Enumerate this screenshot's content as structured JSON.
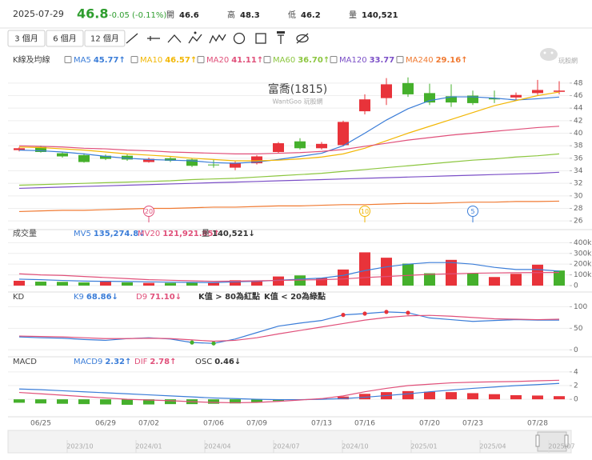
{
  "header": {
    "date": "2025-07-29",
    "price": "46.8",
    "change": "-0.05 (-0.11%)",
    "stats": [
      {
        "label": "開",
        "value": "46.6"
      },
      {
        "label": "高",
        "value": "48.3"
      },
      {
        "label": "低",
        "value": "46.2"
      },
      {
        "label": "量",
        "value": "140,521"
      }
    ],
    "ranges": [
      "3 個月",
      "6 個月",
      "12 個月"
    ],
    "logo": "玩股網"
  },
  "chart_data": [
    {
      "type": "candlestick",
      "title": "K線及均線",
      "watermark": "富喬(1815)",
      "watermark_sub": "WantGoo 玩股網",
      "categories": [
        null,
        "06/25",
        null,
        null,
        "06/29",
        null,
        "07/02",
        null,
        null,
        "07/06",
        null,
        "07/09",
        null,
        null,
        "07/13",
        null,
        "07/16",
        null,
        null,
        "07/20",
        null,
        "07/23",
        null,
        null,
        "07/28",
        null
      ],
      "open": [
        37.3,
        37.8,
        36.8,
        36.5,
        36.4,
        36.4,
        35.4,
        36.0,
        35.8,
        35.0,
        34.5,
        35.2,
        37.0,
        38.7,
        37.6,
        38.1,
        43.5,
        45.6,
        48.0,
        46.4,
        45.9,
        46.0,
        45.6,
        45.7,
        46.4,
        46.6
      ],
      "close": [
        37.6,
        37.0,
        36.3,
        35.4,
        35.9,
        35.8,
        35.9,
        35.6,
        34.8,
        34.9,
        35.3,
        36.3,
        38.4,
        37.6,
        38.3,
        41.8,
        45.4,
        47.8,
        46.2,
        44.9,
        44.9,
        44.8,
        45.4,
        46.1,
        46.9,
        46.8
      ],
      "high": [
        37.8,
        38.0,
        37.0,
        36.8,
        36.6,
        36.6,
        36.1,
        36.2,
        36.0,
        35.8,
        35.5,
        36.5,
        38.6,
        39.2,
        38.6,
        42.0,
        46.2,
        48.8,
        48.9,
        47.9,
        47.8,
        46.8,
        46.8,
        46.5,
        48.5,
        48.3
      ],
      "low": [
        37.1,
        36.9,
        36.1,
        35.3,
        35.7,
        35.6,
        35.3,
        35.4,
        34.6,
        34.5,
        34.1,
        35.0,
        36.8,
        37.4,
        37.4,
        37.9,
        43.0,
        44.5,
        45.8,
        44.5,
        44.2,
        44.5,
        44.8,
        45.3,
        46.1,
        46.2
      ],
      "up_color": "#e8333a",
      "down_color": "#45b02c",
      "series": [
        {
          "name": "MA5",
          "legend_label": "45.77↑",
          "color": "#3b7dd8",
          "values": [
            37.3,
            37.2,
            37.0,
            36.7,
            36.3,
            36.0,
            35.8,
            35.7,
            35.6,
            35.3,
            35.2,
            35.4,
            35.8,
            36.3,
            36.8,
            38.0,
            40.0,
            42.1,
            43.9,
            45.2,
            45.8,
            45.8,
            45.6,
            45.3,
            45.5,
            45.77
          ]
        },
        {
          "name": "MA10",
          "legend_label": "46.57↑",
          "color": "#f2b705",
          "values": [
            37.8,
            37.7,
            37.5,
            37.3,
            37.0,
            36.7,
            36.5,
            36.3,
            36.0,
            35.8,
            35.6,
            35.6,
            35.7,
            35.9,
            36.2,
            36.7,
            37.6,
            38.8,
            40.0,
            41.1,
            42.2,
            43.3,
            44.4,
            45.2,
            46.0,
            46.57
          ]
        },
        {
          "name": "MA20",
          "legend_label": "41.11↑",
          "color": "#e0507a",
          "values": [
            38.0,
            37.9,
            37.8,
            37.6,
            37.5,
            37.3,
            37.2,
            37.0,
            36.9,
            36.8,
            36.7,
            36.7,
            36.8,
            36.9,
            37.1,
            37.4,
            37.9,
            38.4,
            38.9,
            39.3,
            39.7,
            40.0,
            40.3,
            40.6,
            40.9,
            41.11
          ]
        },
        {
          "name": "MA60",
          "legend_label": "36.70↑",
          "color": "#8cc63f",
          "values": [
            31.7,
            31.8,
            31.9,
            32.0,
            32.1,
            32.2,
            32.3,
            32.4,
            32.6,
            32.7,
            32.8,
            33.0,
            33.2,
            33.4,
            33.6,
            33.9,
            34.2,
            34.5,
            34.8,
            35.1,
            35.4,
            35.7,
            35.9,
            36.2,
            36.4,
            36.7
          ]
        },
        {
          "name": "MA120",
          "legend_label": "33.77↑",
          "color": "#7b4fc7",
          "values": [
            31.2,
            31.3,
            31.4,
            31.5,
            31.6,
            31.7,
            31.8,
            31.9,
            32.0,
            32.1,
            32.2,
            32.3,
            32.4,
            32.5,
            32.6,
            32.7,
            32.8,
            32.9,
            33.0,
            33.1,
            33.2,
            33.3,
            33.4,
            33.5,
            33.6,
            33.77
          ]
        },
        {
          "name": "MA240",
          "legend_label": "29.16↑",
          "color": "#f07a32",
          "values": [
            27.5,
            27.6,
            27.7,
            27.7,
            27.8,
            27.9,
            28.0,
            28.0,
            28.1,
            28.2,
            28.2,
            28.3,
            28.4,
            28.4,
            28.5,
            28.6,
            28.6,
            28.7,
            28.8,
            28.8,
            28.9,
            29.0,
            29.0,
            29.1,
            29.1,
            29.16
          ]
        }
      ],
      "markers": [
        {
          "label": "20",
          "index": 6,
          "color": "#e0507a"
        },
        {
          "label": "10",
          "index": 16,
          "color": "#f2b705"
        },
        {
          "label": "5",
          "index": 21,
          "color": "#3b7dd8"
        }
      ],
      "ylim": [
        25,
        49
      ],
      "yticks": [
        26,
        28,
        30,
        32,
        34,
        36,
        38,
        40,
        42,
        44,
        46,
        48
      ],
      "grid": true
    },
    {
      "type": "bar",
      "title": "成交量",
      "up_color": "#e8333a",
      "down_color": "#45b02c",
      "series": [
        {
          "name": "MV5",
          "legend_label": "135,274.8↓",
          "color": "#3b7dd8",
          "type": "line",
          "values": [
            60000,
            55000,
            48000,
            42000,
            40000,
            38000,
            35000,
            32000,
            30000,
            28000,
            35000,
            40000,
            50000,
            60000,
            70000,
            95000,
            140000,
            175000,
            200000,
            215000,
            215000,
            200000,
            170000,
            150000,
            150000,
            135274.8
          ]
        },
        {
          "name": "MV20",
          "legend_label": "121,921.85↑",
          "color": "#e0507a",
          "type": "line",
          "values": [
            110000,
            100000,
            95000,
            85000,
            75000,
            65000,
            55000,
            50000,
            45000,
            40000,
            42000,
            45000,
            48000,
            52000,
            55000,
            62000,
            75000,
            85000,
            95000,
            105000,
            110000,
            115000,
            118000,
            120000,
            121000,
            121921.85
          ]
        },
        {
          "name": "量",
          "legend_label": "140,521↓",
          "color": "#333333",
          "type": "bar",
          "values": [
            45000,
            37000,
            35000,
            30000,
            45000,
            30000,
            25000,
            25000,
            30000,
            28000,
            50000,
            40000,
            85000,
            95000,
            70000,
            150000,
            310000,
            260000,
            205000,
            115000,
            240000,
            115000,
            80000,
            110000,
            195000,
            140521
          ]
        }
      ],
      "ylim": [
        0,
        440000
      ],
      "yticks": [
        0,
        {
          "value": 100000,
          "label": "100k"
        },
        {
          "value": 200000,
          "label": "200k"
        },
        {
          "value": 300000,
          "label": "300k"
        },
        {
          "value": 400000,
          "label": "400k"
        }
      ],
      "grid": true
    },
    {
      "type": "line",
      "title": "KD",
      "notes": [
        "K值 > 80為紅點",
        "K值 < 20為綠點"
      ],
      "series": [
        {
          "name": "K9",
          "legend_label": "68.86↓",
          "color": "#3b7dd8",
          "values": [
            30,
            28,
            27,
            24,
            22,
            26,
            28,
            25,
            17,
            15,
            25,
            40,
            55,
            62,
            68,
            81,
            84,
            88,
            86,
            74,
            70,
            66,
            68,
            70,
            69,
            68.86
          ],
          "dots": [
            {
              "above": 80,
              "color": "#e8333a"
            },
            {
              "below": 20,
              "color": "#45b02c"
            }
          ]
        },
        {
          "name": "D9",
          "legend_label": "71.10↓",
          "color": "#e0507a",
          "values": [
            32,
            31,
            30,
            28,
            26,
            26,
            27,
            26,
            23,
            20,
            22,
            28,
            37,
            45,
            53,
            61,
            69,
            75,
            79,
            80,
            78,
            75,
            72,
            71,
            70,
            71.1
          ]
        }
      ],
      "ylim": [
        -5,
        110
      ],
      "yticks": [
        0,
        50,
        100
      ],
      "grid": true
    },
    {
      "type": "line",
      "title": "MACD",
      "up_color": "#e8333a",
      "down_color": "#45b02c",
      "series": [
        {
          "name": "MACD9",
          "legend_label": "2.32↑",
          "color": "#3b7dd8",
          "values": [
            1.5,
            1.4,
            1.25,
            1.1,
            0.95,
            0.8,
            0.65,
            0.5,
            0.35,
            0.2,
            0.1,
            0.0,
            -0.05,
            -0.05,
            0.0,
            0.1,
            0.3,
            0.55,
            0.8,
            1.1,
            1.35,
            1.6,
            1.8,
            2.0,
            2.15,
            2.32
          ]
        },
        {
          "name": "DIF",
          "legend_label": "2.78↑",
          "color": "#e0507a",
          "values": [
            1.0,
            0.8,
            0.6,
            0.4,
            0.2,
            0.0,
            -0.1,
            -0.2,
            -0.35,
            -0.45,
            -0.5,
            -0.45,
            -0.3,
            -0.1,
            0.1,
            0.5,
            1.1,
            1.6,
            2.0,
            2.2,
            2.4,
            2.5,
            2.55,
            2.6,
            2.7,
            2.78
          ]
        },
        {
          "name": "OSC",
          "legend_label": "0.46↓",
          "color": "#333333",
          "type": "bar",
          "values": [
            -0.5,
            -0.6,
            -0.65,
            -0.7,
            -0.75,
            -0.8,
            -0.75,
            -0.7,
            -0.7,
            -0.65,
            -0.6,
            -0.45,
            -0.25,
            -0.05,
            0.1,
            0.4,
            0.8,
            1.05,
            1.2,
            1.1,
            1.05,
            0.9,
            0.75,
            0.6,
            0.55,
            0.46
          ]
        }
      ],
      "ylim": [
        -2.2,
        4.8
      ],
      "yticks": [
        0,
        2,
        4
      ],
      "grid": true
    }
  ],
  "navigator": [
    "2023/10",
    "2024/01",
    "2024/04",
    "2024/07",
    "2024/10",
    "2025/01",
    "2025/04",
    "2025/07"
  ]
}
